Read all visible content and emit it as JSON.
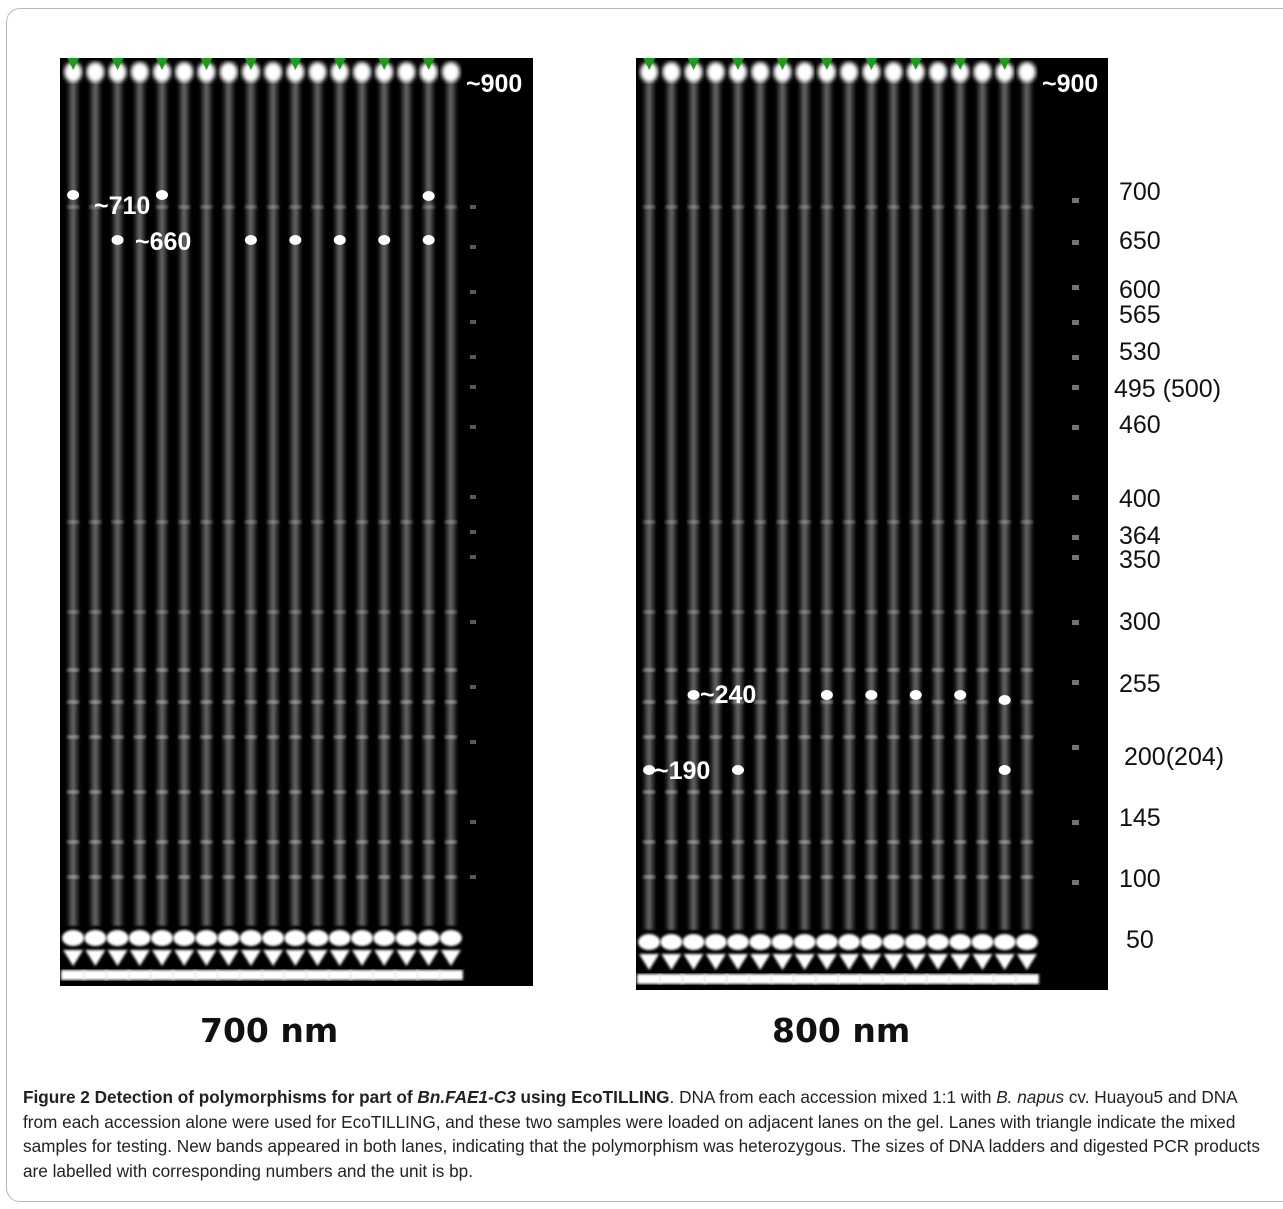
{
  "panels": [
    {
      "name": "700 nm",
      "band_labels": [
        "~900",
        "~710",
        "~660"
      ]
    },
    {
      "name": "800 nm",
      "band_labels": [
        "~900",
        "~240",
        "~190"
      ]
    }
  ],
  "ladder_sizes": [
    "700",
    "650",
    "600",
    "565",
    "530",
    "495 (500)",
    "460",
    "400",
    "364",
    "350",
    "300",
    "255",
    "200(204)",
    "145",
    "100",
    "50"
  ],
  "caption": {
    "figure_label": "Figure 2",
    "title_pre": "Detection of polymorphisms for part of ",
    "gene": "Bn.FAE1-C3",
    "title_post": " using EcoTILLING",
    "text_1": ". DNA from each accession mixed 1:1 with ",
    "species": "B. napus",
    "text_2": " cv. Huayou5 and DNA from each accession alone were used for EcoTILLING, and these two samples were loaded on adjacent lanes on the gel. Lanes with triangle indicate the mixed samples for testing. New bands appeared in both lanes, indicating that the polymorphism was heterozygous. The sizes of DNA ladders and digested PCR products are labelled with corresponding numbers and the unit is bp."
  },
  "colors": {
    "marker": "#1a9e1a",
    "gel_background": "#000000",
    "band": "#ffffff"
  }
}
